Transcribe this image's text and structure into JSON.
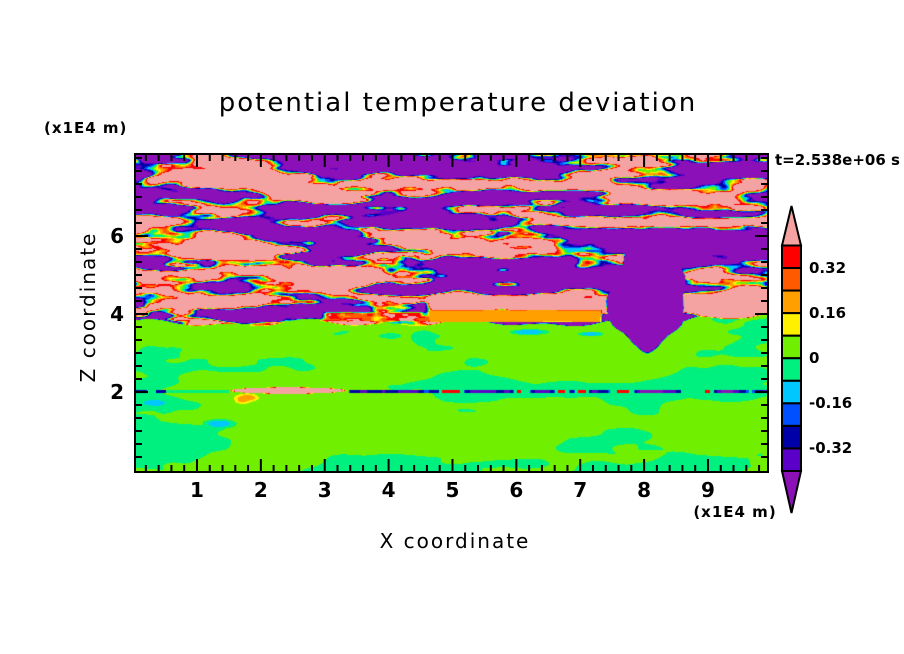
{
  "title": "potential temperature deviation",
  "timestamp": "t=2.538e+06 s",
  "axes": {
    "x_label": "X coordinate",
    "x_units": "(x1E4 m)",
    "y_label": "Z coordinate",
    "y_units": "(x1E4 m)",
    "x_ticks": [
      "1",
      "2",
      "3",
      "4",
      "5",
      "6",
      "7",
      "8",
      "9"
    ],
    "y_ticks": [
      "2",
      "4",
      "6"
    ]
  },
  "chart_data": {
    "type": "heatmap",
    "title": "potential temperature deviation",
    "xlabel": "X coordinate",
    "ylabel": "Z coordinate",
    "x_units": "x1E4 m",
    "y_units": "x1E4 m",
    "xlim": [
      0,
      9.92
    ],
    "ylim": [
      0,
      8.08
    ],
    "time_label": "t=2.538e+06 s",
    "colorbar": {
      "levels": [
        -0.4,
        -0.32,
        -0.24,
        -0.16,
        -0.08,
        0,
        0.08,
        0.16,
        0.24,
        0.32,
        0.4
      ],
      "labels": [
        "0.32",
        "0.16",
        "0",
        "-0.16",
        "-0.32"
      ],
      "band_colors_top_to_bottom": [
        "#FF0000",
        "#FF5A00",
        "#FFA000",
        "#FFF000",
        "#70F000",
        "#00F080",
        "#00C8FF",
        "#0050FF",
        "#0000A8",
        "#5A00C8"
      ],
      "over_color": "#F5A2A2",
      "under_color": "#8C10B8"
    },
    "field_description": {
      "upper_region": "strong deviations (pink > 0.4, violet < -0.4) in horizontally elongated turbulent streaks above z ~ 3.8",
      "orange_band": {
        "x": [
          4.6,
          7.36
        ],
        "z": [
          3.79,
          4.13
        ],
        "value": 0.2
      },
      "red_streak_zone": {
        "x": [
          2.9,
          4.6
        ],
        "z": [
          3.8,
          4.1
        ]
      },
      "purple_plume": {
        "x_center": 8.05,
        "z_center": 4.35,
        "z_bottom": 2.9
      },
      "lower_region": "weak deviations near 0 (chartreuse 0..0.08, green -0.08..0) below z ~ 3.8",
      "shear_line": {
        "z": 2.0,
        "salmon_overshoot_x": [
          1.5,
          3.3
        ],
        "yellow_spot_x": 1.78,
        "dashes": "navy/blue dashes with sparse red specks"
      }
    }
  }
}
